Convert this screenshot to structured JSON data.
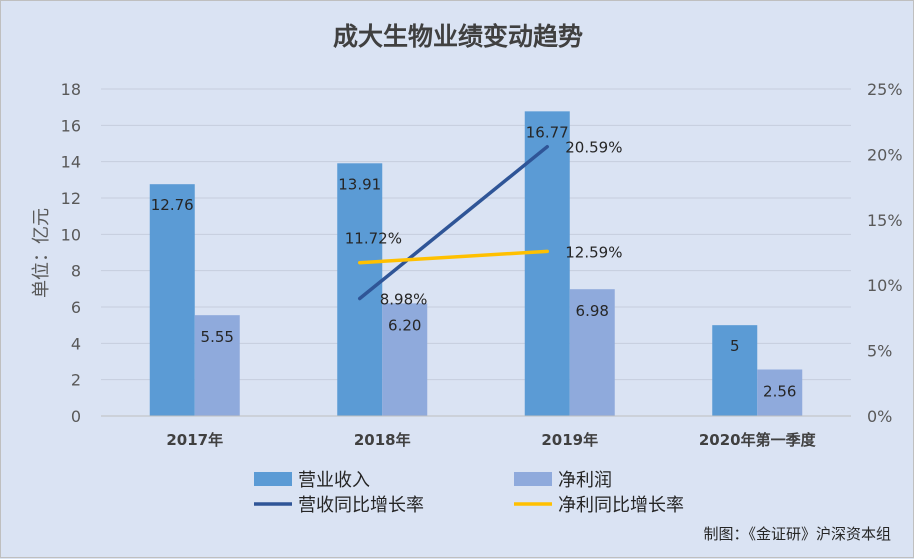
{
  "chart_data": {
    "type": "bar",
    "title": "成大生物业绩变动趋势",
    "ylabel": "单位：亿元",
    "ylim": [
      0,
      18
    ],
    "y_ticks": [
      0,
      2,
      4,
      6,
      8,
      10,
      12,
      14,
      16,
      18
    ],
    "y2lim": [
      0,
      25
    ],
    "y2_ticks": [
      "0%",
      "5%",
      "10%",
      "15%",
      "20%",
      "25%"
    ],
    "categories": [
      "2017年",
      "2018年",
      "2019年",
      "2020年第一季度"
    ],
    "series": [
      {
        "name": "营业收入",
        "kind": "bar",
        "color": "#5b9bd5",
        "values": [
          12.76,
          13.91,
          16.77,
          5
        ],
        "labels": [
          "12.76",
          "13.91",
          "16.77",
          "5"
        ]
      },
      {
        "name": "净利润",
        "kind": "bar",
        "color": "#8faadc",
        "values": [
          5.55,
          6.2,
          6.98,
          2.56
        ],
        "labels": [
          "5.55",
          "6.20",
          "6.98",
          "2.56"
        ]
      },
      {
        "name": "营收同比增长率",
        "kind": "line",
        "axis": "right",
        "color": "#2f5597",
        "values": [
          null,
          8.98,
          20.59,
          null
        ],
        "labels": [
          "",
          "8.98%",
          "20.59%",
          ""
        ]
      },
      {
        "name": "净利同比增长率",
        "kind": "line",
        "axis": "right",
        "color": "#ffc000",
        "values": [
          null,
          11.72,
          12.59,
          null
        ],
        "labels": [
          "",
          "11.72%",
          "12.59%",
          ""
        ]
      }
    ],
    "legend": "bottom",
    "grid": true
  },
  "credit": "制图：《金证研》沪深资本组"
}
